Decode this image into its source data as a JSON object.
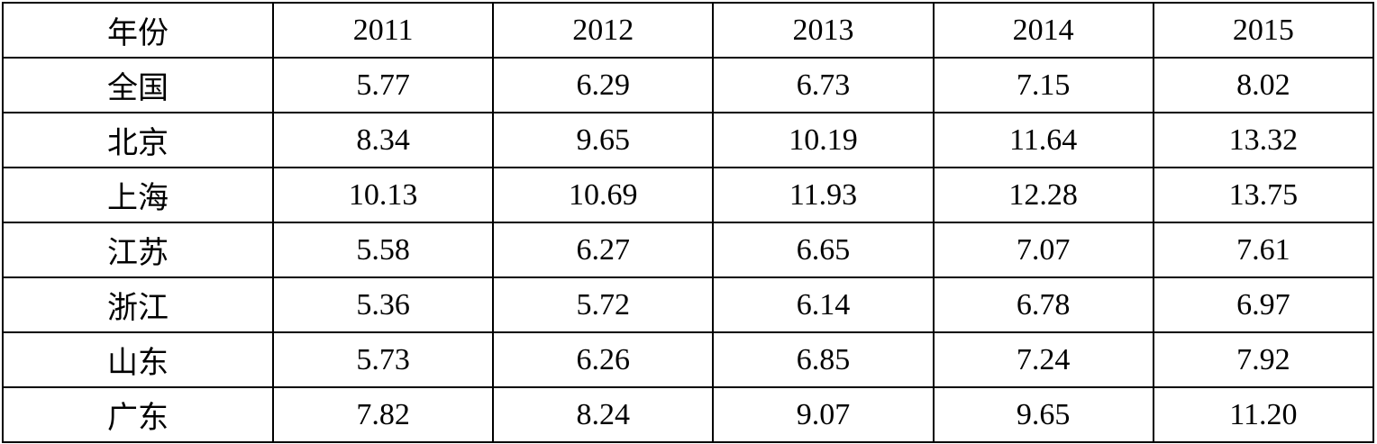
{
  "table": {
    "header": [
      "年份",
      "2011",
      "2012",
      "2013",
      "2014",
      "2015"
    ],
    "rows": [
      [
        "全国",
        "5.77",
        "6.29",
        "6.73",
        "7.15",
        "8.02"
      ],
      [
        "北京",
        "8.34",
        "9.65",
        "10.19",
        "11.64",
        "13.32"
      ],
      [
        "上海",
        "10.13",
        "10.69",
        "11.93",
        "12.28",
        "13.75"
      ],
      [
        "江苏",
        "5.58",
        "6.27",
        "6.65",
        "7.07",
        "7.61"
      ],
      [
        "浙江",
        "5.36",
        "5.72",
        "6.14",
        "6.78",
        "6.97"
      ],
      [
        "山东",
        "5.73",
        "6.26",
        "6.85",
        "7.24",
        "7.92"
      ],
      [
        "广东",
        "7.82",
        "8.24",
        "9.07",
        "9.65",
        "11.20"
      ]
    ]
  }
}
